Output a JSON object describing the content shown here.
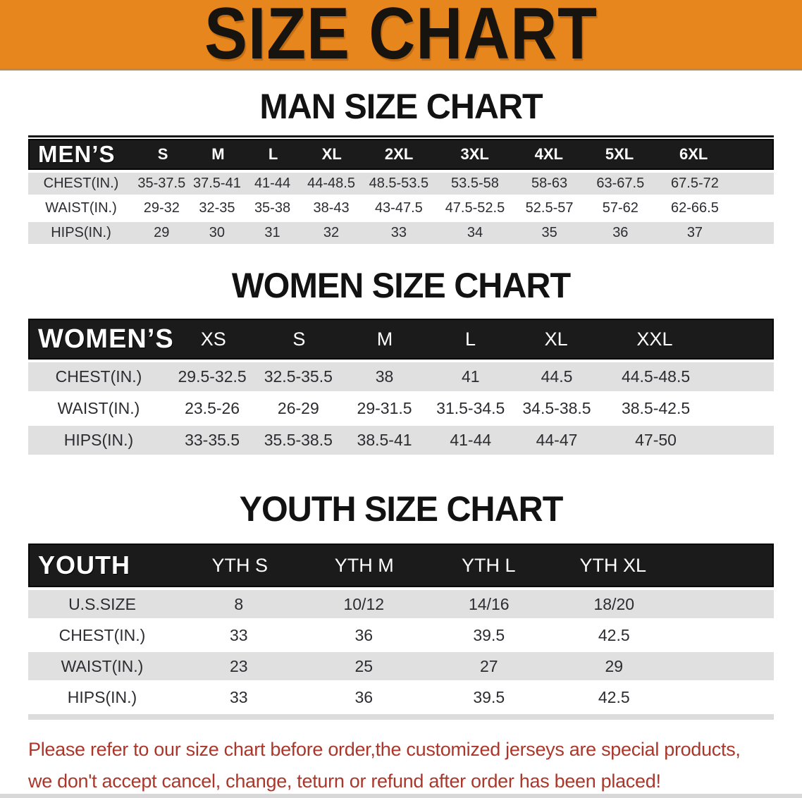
{
  "banner": {
    "title": "SIZE CHART"
  },
  "sections": [
    {
      "id": "men",
      "heading": "MAN SIZE CHART",
      "table": {
        "header_label": "MEN’S",
        "columns": [
          "S",
          "M",
          "L",
          "XL",
          "2XL",
          "3XL",
          "4XL",
          "5XL",
          "6XL"
        ],
        "rows": [
          {
            "label": "CHEST(IN.)",
            "values": [
              "35-37.5",
              "37.5-41",
              "41-44",
              "44-48.5",
              "48.5-53.5",
              "53.5-58",
              "58-63",
              "63-67.5",
              "67.5-72"
            ]
          },
          {
            "label": "WAIST(IN.)",
            "values": [
              "29-32",
              "32-35",
              "35-38",
              "38-43",
              "43-47.5",
              "47.5-52.5",
              "52.5-57",
              "57-62",
              "62-66.5"
            ]
          },
          {
            "label": "HIPS(IN.)",
            "values": [
              "29",
              "30",
              "31",
              "32",
              "33",
              "34",
              "35",
              "36",
              "37"
            ]
          }
        ]
      }
    },
    {
      "id": "women",
      "heading": "WOMEN SIZE CHART",
      "table": {
        "header_label": "WOMEN’S",
        "columns": [
          "XS",
          "S",
          "M",
          "L",
          "XL",
          "XXL"
        ],
        "rows": [
          {
            "label": "CHEST(IN.)",
            "values": [
              "29.5-32.5",
              "32.5-35.5",
              "38",
              "41",
              "44.5",
              "44.5-48.5"
            ]
          },
          {
            "label": "WAIST(IN.)",
            "values": [
              "23.5-26",
              "26-29",
              "29-31.5",
              "31.5-34.5",
              "34.5-38.5",
              "38.5-42.5"
            ]
          },
          {
            "label": "HIPS(IN.)",
            "values": [
              "33-35.5",
              "35.5-38.5",
              "38.5-41",
              "41-44",
              "44-47",
              "47-50"
            ]
          }
        ]
      }
    },
    {
      "id": "youth",
      "heading": "YOUTH SIZE CHART",
      "table": {
        "header_label": "YOUTH",
        "columns": [
          "YTH S",
          "YTH M",
          "YTH L",
          "YTH XL"
        ],
        "rows": [
          {
            "label": "U.S.SIZE",
            "values": [
              "8",
              "10/12",
              "14/16",
              "18/20"
            ]
          },
          {
            "label": "CHEST(IN.)",
            "values": [
              "33",
              "36",
              "39.5",
              "42.5"
            ]
          },
          {
            "label": "WAIST(IN.)",
            "values": [
              "23",
              "25",
              "27",
              "29"
            ]
          },
          {
            "label": "HIPS(IN.)",
            "values": [
              "33",
              "36",
              "39.5",
              "42.5"
            ]
          }
        ]
      }
    }
  ],
  "footer_note": {
    "line1": "Please refer to our size chart before order,the customized jerseys are special products,",
    "line2": "we don't accept cancel, change, teturn or refund after order has been placed!"
  },
  "colors": {
    "banner_orange": "#E8861E",
    "header_black": "#1b1b1b",
    "row_gray": "#E0E0E0",
    "note_red": "#AB372B"
  }
}
